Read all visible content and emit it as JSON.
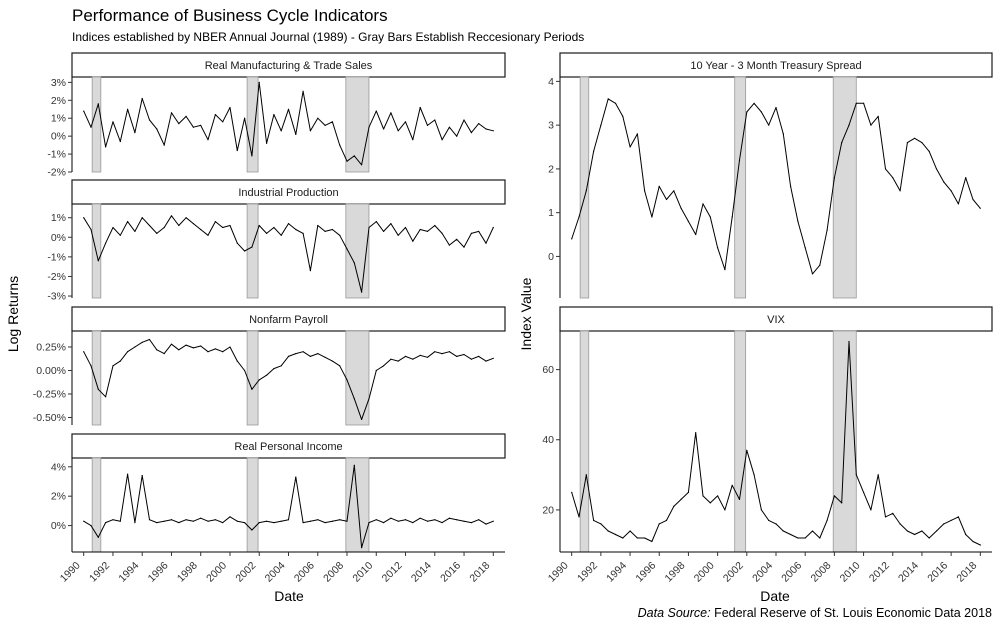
{
  "title": "Performance of Business Cycle Indicators",
  "subtitle": "Indices established by NBER Annual Journal (1989) - Gray Bars Establish Reccesionary Periods",
  "caption": {
    "prefix": "Data Source:",
    "text": " Federal Reserve of St. Louis Economic Data 2018"
  },
  "left": {
    "xlabel": "Date",
    "ylabel": "Log Returns"
  },
  "right": {
    "xlabel": "Date",
    "ylabel": "Index Value"
  },
  "x_ticks": [
    "1990",
    "1992",
    "1994",
    "1996",
    "1998",
    "2000",
    "2002",
    "2004",
    "2006",
    "2008",
    "2010",
    "2012",
    "2014",
    "2016",
    "2018"
  ],
  "recessions": [
    [
      1990.58,
      1991.17
    ],
    [
      2001.17,
      2001.92
    ],
    [
      2007.92,
      2009.5
    ]
  ],
  "colors": {
    "line": "#000000",
    "recession_fill": "#d9d9d9",
    "recession_stroke": "#999999",
    "strip_border": "#1a1a1a"
  },
  "chart_data": [
    {
      "type": "line",
      "title": "Real Manufacturing & Trade Sales",
      "ylim": [
        -2,
        3.3
      ],
      "y_ticks": [
        -2,
        -1,
        0,
        1,
        2,
        3
      ],
      "y_tick_labels": [
        "-2%",
        "-1%",
        "0%",
        "1%",
        "2%",
        "3%"
      ],
      "x": [
        1990.0,
        1990.5,
        1991.0,
        1991.5,
        1992.0,
        1992.5,
        1993.0,
        1993.5,
        1994.0,
        1994.5,
        1995.0,
        1995.5,
        1996.0,
        1996.5,
        1997.0,
        1997.5,
        1998.0,
        1998.5,
        1999.0,
        1999.5,
        2000.0,
        2000.5,
        2001.0,
        2001.5,
        2002.0,
        2002.5,
        2003.0,
        2003.5,
        2004.0,
        2004.5,
        2005.0,
        2005.5,
        2006.0,
        2006.5,
        2007.0,
        2007.5,
        2008.0,
        2008.5,
        2009.0,
        2009.5,
        2010.0,
        2010.5,
        2011.0,
        2011.5,
        2012.0,
        2012.5,
        2013.0,
        2013.5,
        2014.0,
        2014.5,
        2015.0,
        2015.5,
        2016.0,
        2016.5,
        2017.0,
        2017.5,
        2018.0
      ],
      "values": [
        1.4,
        0.5,
        1.8,
        -0.6,
        0.8,
        -0.3,
        1.5,
        0.2,
        2.1,
        0.9,
        0.4,
        -0.5,
        1.3,
        0.7,
        1.1,
        0.5,
        0.6,
        -0.2,
        1.2,
        0.8,
        1.6,
        -0.8,
        1.0,
        -1.1,
        3.0,
        -0.4,
        1.2,
        0.3,
        1.5,
        0.1,
        2.5,
        0.3,
        1.0,
        0.6,
        0.8,
        -0.5,
        -1.4,
        -1.1,
        -1.6,
        0.5,
        1.4,
        0.4,
        1.3,
        0.3,
        0.8,
        -0.2,
        1.6,
        0.6,
        0.9,
        -0.2,
        0.5,
        0.0,
        0.9,
        0.2,
        0.7,
        0.4,
        0.3
      ]
    },
    {
      "type": "line",
      "title": "Industrial Production",
      "ylim": [
        -3.1,
        1.7
      ],
      "y_ticks": [
        -3,
        -2,
        -1,
        0,
        1
      ],
      "y_tick_labels": [
        "-3%",
        "-2%",
        "-1%",
        "0%",
        "1%"
      ],
      "x": [
        1990.0,
        1990.5,
        1991.0,
        1991.5,
        1992.0,
        1992.5,
        1993.0,
        1993.5,
        1994.0,
        1994.5,
        1995.0,
        1995.5,
        1996.0,
        1996.5,
        1997.0,
        1997.5,
        1998.0,
        1998.5,
        1999.0,
        1999.5,
        2000.0,
        2000.5,
        2001.0,
        2001.5,
        2002.0,
        2002.5,
        2003.0,
        2003.5,
        2004.0,
        2004.5,
        2005.0,
        2005.5,
        2006.0,
        2006.5,
        2007.0,
        2007.5,
        2008.0,
        2008.5,
        2009.0,
        2009.5,
        2010.0,
        2010.5,
        2011.0,
        2011.5,
        2012.0,
        2012.5,
        2013.0,
        2013.5,
        2014.0,
        2014.5,
        2015.0,
        2015.5,
        2016.0,
        2016.5,
        2017.0,
        2017.5,
        2018.0
      ],
      "values": [
        1.0,
        0.4,
        -1.2,
        -0.3,
        0.5,
        0.1,
        0.8,
        0.3,
        1.0,
        0.6,
        0.2,
        0.5,
        1.1,
        0.6,
        1.0,
        0.7,
        0.4,
        0.1,
        0.8,
        0.5,
        0.6,
        -0.3,
        -0.7,
        -0.5,
        0.6,
        0.2,
        0.5,
        0.1,
        0.7,
        0.4,
        0.2,
        -1.7,
        0.6,
        0.3,
        0.4,
        0.1,
        -0.6,
        -1.3,
        -2.8,
        0.5,
        0.8,
        0.3,
        0.7,
        0.1,
        0.5,
        -0.2,
        0.4,
        0.3,
        0.6,
        0.2,
        -0.4,
        -0.1,
        -0.5,
        0.2,
        0.3,
        -0.3,
        0.5
      ]
    },
    {
      "type": "line",
      "title": "Nonfarm Payroll",
      "ylim": [
        -0.58,
        0.42
      ],
      "y_ticks": [
        -0.5,
        -0.25,
        0,
        0.25
      ],
      "y_tick_labels": [
        "-0.50%",
        "-0.25%",
        "0.00%",
        "0.25%"
      ],
      "x": [
        1990.0,
        1990.5,
        1991.0,
        1991.5,
        1992.0,
        1992.5,
        1993.0,
        1993.5,
        1994.0,
        1994.5,
        1995.0,
        1995.5,
        1996.0,
        1996.5,
        1997.0,
        1997.5,
        1998.0,
        1998.5,
        1999.0,
        1999.5,
        2000.0,
        2000.5,
        2001.0,
        2001.5,
        2002.0,
        2002.5,
        2003.0,
        2003.5,
        2004.0,
        2004.5,
        2005.0,
        2005.5,
        2006.0,
        2006.5,
        2007.0,
        2007.5,
        2008.0,
        2008.5,
        2009.0,
        2009.5,
        2010.0,
        2010.5,
        2011.0,
        2011.5,
        2012.0,
        2012.5,
        2013.0,
        2013.5,
        2014.0,
        2014.5,
        2015.0,
        2015.5,
        2016.0,
        2016.5,
        2017.0,
        2017.5,
        2018.0
      ],
      "values": [
        0.2,
        0.05,
        -0.2,
        -0.28,
        0.05,
        0.1,
        0.2,
        0.25,
        0.3,
        0.33,
        0.22,
        0.18,
        0.28,
        0.22,
        0.27,
        0.24,
        0.26,
        0.2,
        0.23,
        0.2,
        0.25,
        0.1,
        0.0,
        -0.2,
        -0.1,
        -0.05,
        0.02,
        0.05,
        0.15,
        0.18,
        0.2,
        0.15,
        0.18,
        0.14,
        0.1,
        0.05,
        -0.1,
        -0.3,
        -0.52,
        -0.3,
        0.0,
        0.05,
        0.12,
        0.1,
        0.15,
        0.12,
        0.16,
        0.14,
        0.2,
        0.18,
        0.2,
        0.15,
        0.17,
        0.12,
        0.15,
        0.1,
        0.13
      ]
    },
    {
      "type": "line",
      "title": "Real Personal Income",
      "ylim": [
        -1.8,
        4.6
      ],
      "y_ticks": [
        0,
        2,
        4
      ],
      "y_tick_labels": [
        "0%",
        "2%",
        "4%"
      ],
      "x": [
        1990.0,
        1990.5,
        1991.0,
        1991.5,
        1992.0,
        1992.5,
        1993.0,
        1993.5,
        1994.0,
        1994.5,
        1995.0,
        1995.5,
        1996.0,
        1996.5,
        1997.0,
        1997.5,
        1998.0,
        1998.5,
        1999.0,
        1999.5,
        2000.0,
        2000.5,
        2001.0,
        2001.5,
        2002.0,
        2002.5,
        2003.0,
        2003.5,
        2004.0,
        2004.5,
        2005.0,
        2005.5,
        2006.0,
        2006.5,
        2007.0,
        2007.5,
        2008.0,
        2008.5,
        2009.0,
        2009.5,
        2010.0,
        2010.5,
        2011.0,
        2011.5,
        2012.0,
        2012.5,
        2013.0,
        2013.5,
        2014.0,
        2014.5,
        2015.0,
        2015.5,
        2016.0,
        2016.5,
        2017.0,
        2017.5,
        2018.0
      ],
      "values": [
        0.3,
        0.0,
        -0.8,
        0.2,
        0.4,
        0.3,
        3.5,
        0.2,
        3.4,
        0.4,
        0.2,
        0.3,
        0.4,
        0.2,
        0.4,
        0.3,
        0.5,
        0.3,
        0.4,
        0.2,
        0.6,
        0.3,
        0.2,
        -0.3,
        0.2,
        0.3,
        0.2,
        0.3,
        0.4,
        3.3,
        0.2,
        0.3,
        0.4,
        0.2,
        0.3,
        0.4,
        0.3,
        4.1,
        -1.5,
        0.2,
        0.4,
        0.2,
        0.5,
        0.3,
        0.4,
        0.2,
        0.5,
        0.3,
        0.4,
        0.2,
        0.5,
        0.4,
        0.3,
        0.2,
        0.4,
        0.1,
        0.3
      ]
    },
    {
      "type": "line",
      "title": "10 Year - 3 Month Treasury Spread",
      "ylim": [
        -0.95,
        4.1
      ],
      "y_ticks": [
        0,
        1,
        2,
        3,
        4
      ],
      "y_tick_labels": [
        "0",
        "1",
        "2",
        "3",
        "4"
      ],
      "x": [
        1990.0,
        1990.5,
        1991.0,
        1991.5,
        1992.0,
        1992.5,
        1993.0,
        1993.5,
        1994.0,
        1994.5,
        1995.0,
        1995.5,
        1996.0,
        1996.5,
        1997.0,
        1997.5,
        1998.0,
        1998.5,
        1999.0,
        1999.5,
        2000.0,
        2000.5,
        2001.0,
        2001.5,
        2002.0,
        2002.5,
        2003.0,
        2003.5,
        2004.0,
        2004.5,
        2005.0,
        2005.5,
        2006.0,
        2006.5,
        2007.0,
        2007.5,
        2008.0,
        2008.5,
        2009.0,
        2009.5,
        2010.0,
        2010.5,
        2011.0,
        2011.5,
        2012.0,
        2012.5,
        2013.0,
        2013.5,
        2014.0,
        2014.5,
        2015.0,
        2015.5,
        2016.0,
        2016.5,
        2017.0,
        2017.5,
        2018.0
      ],
      "values": [
        0.4,
        0.9,
        1.5,
        2.4,
        3.0,
        3.6,
        3.5,
        3.2,
        2.5,
        2.8,
        1.5,
        0.9,
        1.6,
        1.3,
        1.5,
        1.1,
        0.8,
        0.5,
        1.2,
        0.9,
        0.2,
        -0.3,
        0.9,
        2.2,
        3.3,
        3.5,
        3.3,
        3.0,
        3.4,
        2.8,
        1.6,
        0.8,
        0.2,
        -0.4,
        -0.2,
        0.6,
        1.8,
        2.6,
        3.0,
        3.5,
        3.5,
        3.0,
        3.2,
        2.0,
        1.8,
        1.5,
        2.6,
        2.7,
        2.6,
        2.4,
        2.0,
        1.7,
        1.5,
        1.2,
        1.8,
        1.3,
        1.1
      ]
    },
    {
      "type": "line",
      "title": "VIX",
      "ylim": [
        8,
        71
      ],
      "y_ticks": [
        20,
        40,
        60
      ],
      "y_tick_labels": [
        "20",
        "40",
        "60"
      ],
      "x": [
        1990.0,
        1990.5,
        1991.0,
        1991.5,
        1992.0,
        1992.5,
        1993.0,
        1993.5,
        1994.0,
        1994.5,
        1995.0,
        1995.5,
        1996.0,
        1996.5,
        1997.0,
        1997.5,
        1998.0,
        1998.5,
        1999.0,
        1999.5,
        2000.0,
        2000.5,
        2001.0,
        2001.5,
        2002.0,
        2002.5,
        2003.0,
        2003.5,
        2004.0,
        2004.5,
        2005.0,
        2005.5,
        2006.0,
        2006.5,
        2007.0,
        2007.5,
        2008.0,
        2008.5,
        2009.0,
        2009.5,
        2010.0,
        2010.5,
        2011.0,
        2011.5,
        2012.0,
        2012.5,
        2013.0,
        2013.5,
        2014.0,
        2014.5,
        2015.0,
        2015.5,
        2016.0,
        2016.5,
        2017.0,
        2017.5,
        2018.0
      ],
      "values": [
        25,
        18,
        30,
        17,
        16,
        14,
        13,
        12,
        14,
        12,
        12,
        11,
        16,
        17,
        21,
        23,
        25,
        42,
        24,
        22,
        24,
        20,
        27,
        23,
        37,
        30,
        20,
        17,
        16,
        14,
        13,
        12,
        12,
        14,
        12,
        17,
        24,
        22,
        68,
        30,
        25,
        20,
        30,
        18,
        19,
        16,
        14,
        13,
        14,
        12,
        14,
        16,
        17,
        18,
        13,
        11,
        10
      ]
    }
  ]
}
